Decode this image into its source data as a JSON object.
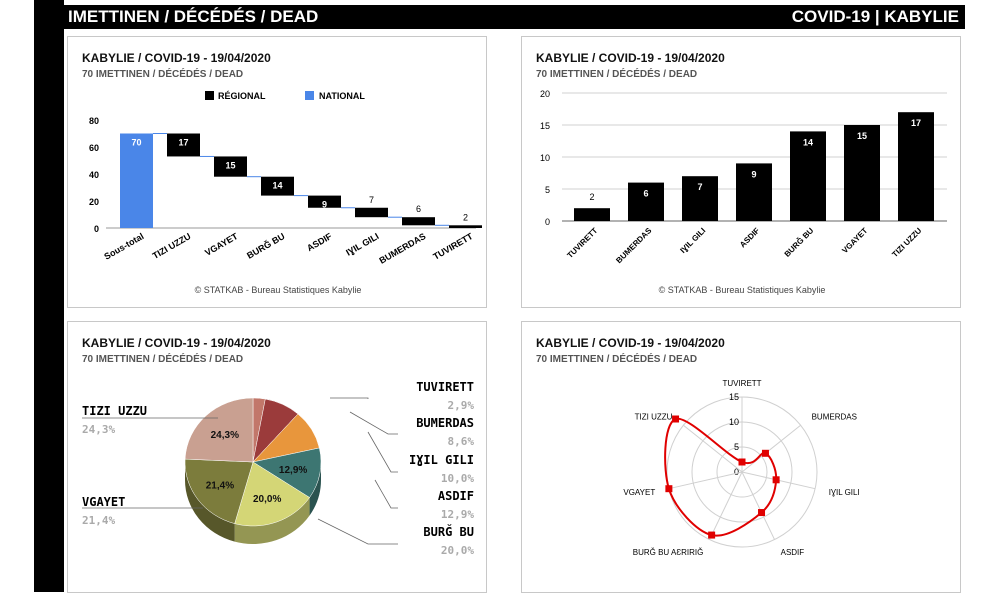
{
  "header": {
    "left_title": "IMETTINEN / DÉCÉDÉS / DEAD",
    "right_title": "COVID-19 | KABYLIE"
  },
  "colors": {
    "regional": "#000000",
    "national": "#4a86e8",
    "radar_line": "#e00000",
    "pie": [
      "#c2776a",
      "#9b3b3b",
      "#e8963c",
      "#3d7672",
      "#d4d676",
      "#7c7c3c",
      "#c9a091"
    ]
  },
  "panels": [
    {
      "title": "KABYLIE / COVID-19 - 19/04/2020",
      "subtitle": "70 IMETTINEN / DÉCÉDÉS / DEAD",
      "footer": "© STATKAB - Bureau Statistiques Kabylie"
    },
    {
      "title": "KABYLIE / COVID-19 - 19/04/2020",
      "subtitle": "70 IMETTINEN / DÉCÉDÉS / DEAD",
      "footer": "© STATKAB - Bureau Statistiques Kabylie"
    },
    {
      "title": "KABYLIE / COVID-19 - 19/04/2020",
      "subtitle": "70 IMETTINEN / DÉCÉDÉS / DEAD"
    },
    {
      "title": "KABYLIE / COVID-19 - 19/04/2020",
      "subtitle": "70 IMETTINEN / DÉCÉDÉS / DEAD"
    }
  ],
  "chart_data": [
    {
      "type": "bar",
      "subtype": "waterfall",
      "legend": [
        "RÉGIONAL",
        "NATIONAL"
      ],
      "legend_position": "top",
      "categories": [
        "Sous-total",
        "TIZI UZZU",
        "VGAYET",
        "BURǦ BU",
        "ASDIF",
        "IƔIL GILI",
        "BUMERDAS",
        "TUVIRETT"
      ],
      "values": [
        70,
        17,
        15,
        14,
        9,
        7,
        6,
        2
      ],
      "value_labels": [
        "70",
        "17",
        "15",
        "14",
        "9",
        "7",
        "6",
        "2"
      ],
      "yticks": [
        "0",
        "20",
        "40",
        "60",
        "80"
      ],
      "ylim": [
        0,
        80
      ],
      "grid": false
    },
    {
      "type": "bar",
      "categories": [
        "TUVIRETT",
        "BUMERDAS",
        "IƔIL GILI",
        "ASDIF",
        "BURǦ BU",
        "VGAYET",
        "TIZI UZZU"
      ],
      "values": [
        2,
        6,
        7,
        9,
        14,
        15,
        17
      ],
      "value_labels": [
        "2",
        "6",
        "7",
        "9",
        "14",
        "15",
        "17"
      ],
      "yticks": [
        "0",
        "5",
        "10",
        "15",
        "20"
      ],
      "ylim": [
        0,
        20
      ],
      "grid": true
    },
    {
      "type": "pie",
      "labels": [
        "TUVIRETT",
        "BUMERDAS",
        "IƔIL GILI",
        "ASDIF",
        "BURǦ BU",
        "VGAYET",
        "TIZI UZZU"
      ],
      "values": [
        2.9,
        8.6,
        10.0,
        12.9,
        20.0,
        21.4,
        24.3
      ],
      "value_labels": [
        "2,9%",
        "8,6%",
        "10,0%",
        "12,9%",
        "20,0%",
        "21,4%",
        "24,3%"
      ],
      "inside_labels": [
        "",
        "",
        "",
        "12,9%",
        "20,0%",
        "21,4%",
        "24,3%"
      ]
    },
    {
      "type": "radar",
      "labels": [
        "TUVIRETT",
        "BUMERDAS",
        "IƔIL GILI",
        "ASDIF",
        "BURǦ BU AƐRIRIǦ",
        "VGAYET",
        "TIZI UZZU"
      ],
      "values": [
        2,
        6,
        7,
        9,
        14,
        15,
        17
      ],
      "rticks": [
        "0",
        "5",
        "10",
        "15"
      ],
      "rlim": [
        0,
        15
      ]
    }
  ]
}
